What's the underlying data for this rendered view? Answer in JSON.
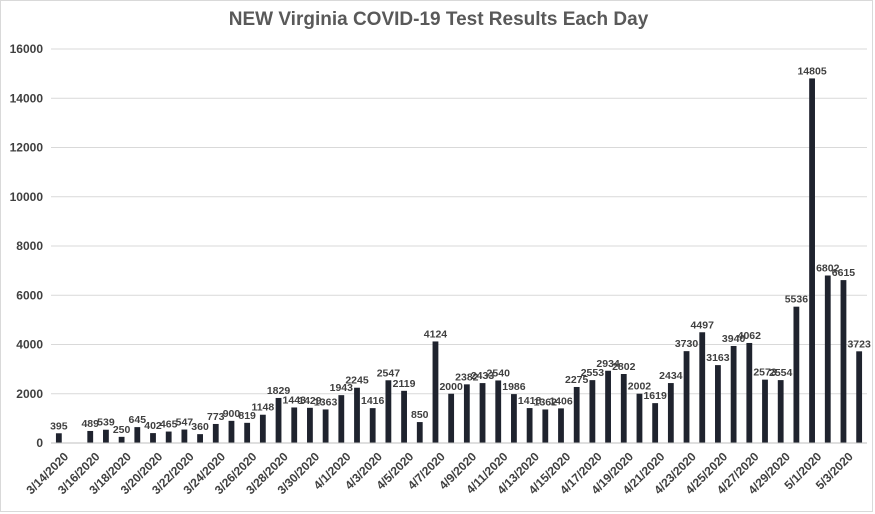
{
  "chart_data": {
    "type": "bar",
    "title": "NEW Virginia COVID-19 Test Results Each Day",
    "xlabel": "",
    "ylabel": "",
    "ylim": [
      0,
      16000
    ],
    "y_ticks": [
      "0",
      "2000",
      "4000",
      "6000",
      "8000",
      "10000",
      "12000",
      "14000",
      "16000"
    ],
    "grid": "horizontal",
    "legend": "none",
    "bar_color": "#1f232e",
    "categories": [
      "3/14/2020",
      "3/15/2020",
      "3/16/2020",
      "3/17/2020",
      "3/18/2020",
      "3/19/2020",
      "3/20/2020",
      "3/21/2020",
      "3/22/2020",
      "3/23/2020",
      "3/24/2020",
      "3/25/2020",
      "3/26/2020",
      "3/27/2020",
      "3/28/2020",
      "3/29/2020",
      "3/30/2020",
      "3/31/2020",
      "4/1/2020",
      "4/2/2020",
      "4/3/2020",
      "4/4/2020",
      "4/5/2020",
      "4/6/2020",
      "4/7/2020",
      "4/8/2020",
      "4/9/2020",
      "4/10/2020",
      "4/11/2020",
      "4/12/2020",
      "4/13/2020",
      "4/14/2020",
      "4/15/2020",
      "4/16/2020",
      "4/17/2020",
      "4/18/2020",
      "4/19/2020",
      "4/20/2020",
      "4/21/2020",
      "4/22/2020",
      "4/23/2020",
      "4/24/2020",
      "4/25/2020",
      "4/26/2020",
      "4/27/2020",
      "4/28/2020",
      "4/29/2020",
      "4/30/2020",
      "5/1/2020",
      "5/2/2020",
      "5/3/2020",
      "5/4/2020"
    ],
    "tick_labels_shown": [
      "3/14/2020",
      "3/16/2020",
      "3/18/2020",
      "3/20/2020",
      "3/22/2020",
      "3/24/2020",
      "3/26/2020",
      "3/28/2020",
      "3/30/2020",
      "4/1/2020",
      "4/3/2020",
      "4/5/2020",
      "4/7/2020",
      "4/9/2020",
      "4/11/2020",
      "4/13/2020",
      "4/15/2020",
      "4/17/2020",
      "4/19/2020",
      "4/21/2020",
      "4/23/2020",
      "4/25/2020",
      "4/27/2020",
      "4/29/2020",
      "5/1/2020",
      "5/3/2020"
    ],
    "values": [
      395,
      null,
      489,
      539,
      250,
      645,
      402,
      465,
      547,
      360,
      773,
      900,
      819,
      1148,
      1829,
      1443,
      1429,
      1363,
      1943,
      2245,
      1416,
      2547,
      2119,
      850,
      4124,
      2000,
      2382,
      2433,
      2540,
      1986,
      1418,
      1362,
      1406,
      2275,
      2553,
      2934,
      2802,
      2002,
      1619,
      2434,
      3730,
      4497,
      3163,
      3940,
      4062,
      2573,
      2554,
      5536,
      14805,
      6802,
      6615,
      3723
    ],
    "data_labels": [
      "395",
      "",
      "489",
      "539",
      "250",
      "645",
      "402",
      "465",
      "547",
      "360",
      "773",
      "900",
      "819",
      "1148",
      "1829",
      "1443",
      "1429",
      "1363",
      "1943",
      "2245",
      "1416",
      "2547",
      "2119",
      "850",
      "4124",
      "2000",
      "2382",
      "2433",
      "2540",
      "1986",
      "1418",
      "1362",
      "1406",
      "2275",
      "2553",
      "2934",
      "2802",
      "2002",
      "1619",
      "2434",
      "3730",
      "4497",
      "3163",
      "3940",
      "4062",
      "2573",
      "2554",
      "5536",
      "14805",
      "6802",
      "6615",
      "3723"
    ]
  }
}
